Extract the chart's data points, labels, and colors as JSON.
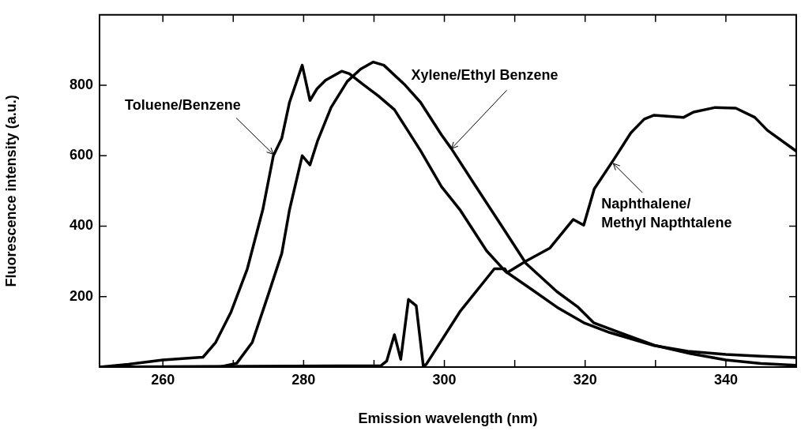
{
  "chart_data": {
    "type": "line",
    "xlabel": "Emission wavelength (nm)",
    "ylabel": "Fluorescence intensity (a.u.)",
    "xlim": [
      251,
      350
    ],
    "ylim": [
      0,
      1000
    ],
    "xticks": [
      260,
      {
        "value": 270,
        "label": null
      },
      280,
      {
        "value": 290,
        "label": null
      },
      300,
      {
        "value": 310,
        "label": null
      },
      320,
      {
        "value": 330,
        "label": null
      },
      340,
      {
        "value": 350,
        "label": null
      }
    ],
    "yticks": [
      200,
      400,
      600,
      800
    ],
    "grid": false,
    "legend": false,
    "marker": "none",
    "line_style": "solid",
    "series": [
      {
        "color": "#000000",
        "x": [
          251,
          255.1,
          260,
          265.7,
          267.5,
          269.7,
          272,
          274.2,
          275.7,
          276.9,
          278,
          279.8,
          280.9,
          281.9,
          283.1,
          285.4,
          286.5,
          288.4,
          290.6,
          292.9,
          296.6,
          299.6,
          302.2,
          306,
          308.6,
          312.3,
          316,
          319.8,
          323.5,
          329.8,
          334.6,
          340,
          345,
          350
        ],
        "values": [
          0,
          8,
          20,
          28,
          70,
          157,
          279,
          447,
          600,
          650,
          752,
          857,
          757,
          790,
          814,
          840,
          833,
          803,
          770,
          731,
          615,
          512,
          447,
          330,
          273,
          222,
          170,
          126,
          98,
          61,
          45,
          36,
          31,
          27
        ]
      },
      {
        "color": "#000000",
        "x": [
          251,
          268,
          270.5,
          272.7,
          275,
          276.9,
          278,
          279.8,
          280.9,
          282,
          283.9,
          286.2,
          288.1,
          289.9,
          291.4,
          294.3,
          296.6,
          299.6,
          301,
          304.4,
          308,
          311.6,
          316,
          319,
          321.2,
          325.7,
          330,
          335,
          340,
          345,
          350
        ],
        "values": [
          0,
          0,
          11,
          70,
          207,
          323,
          447,
          600,
          574,
          643,
          737,
          811,
          846,
          866,
          857,
          803,
          752,
          659,
          620,
          515,
          405,
          294,
          214,
          170,
          126,
          92,
          61,
          38,
          20,
          10,
          5
        ]
      },
      {
        "color": "#000000",
        "x": [
          251,
          291,
          291.8,
          292.9,
          293.8,
          294.9,
          296,
          297,
          297.4,
          302.2,
          307.1,
          308.6,
          308.9,
          311.6,
          315,
          318.3,
          319.8,
          321.3,
          324.2,
          326.5,
          328.4,
          329.8,
          334,
          335.4,
          338.5,
          341.4,
          344.1,
          345.9,
          350
        ],
        "values": [
          0,
          4,
          17,
          92,
          22,
          192,
          174,
          4,
          7,
          157,
          279,
          279,
          268,
          301,
          338,
          419,
          403,
          506,
          593,
          665,
          704,
          715,
          709,
          724,
          737,
          735,
          709,
          672,
          613
        ]
      }
    ],
    "annotations": [
      {
        "text": "Toluene/Benzene",
        "x": 275.7,
        "y": 604
      },
      {
        "text": "Xylene/Ethyl Benzene",
        "x": 301,
        "y": 620
      },
      {
        "text": "Naphthalene/\nMethyl Napthtalene",
        "x": 324,
        "y": 578
      }
    ]
  }
}
